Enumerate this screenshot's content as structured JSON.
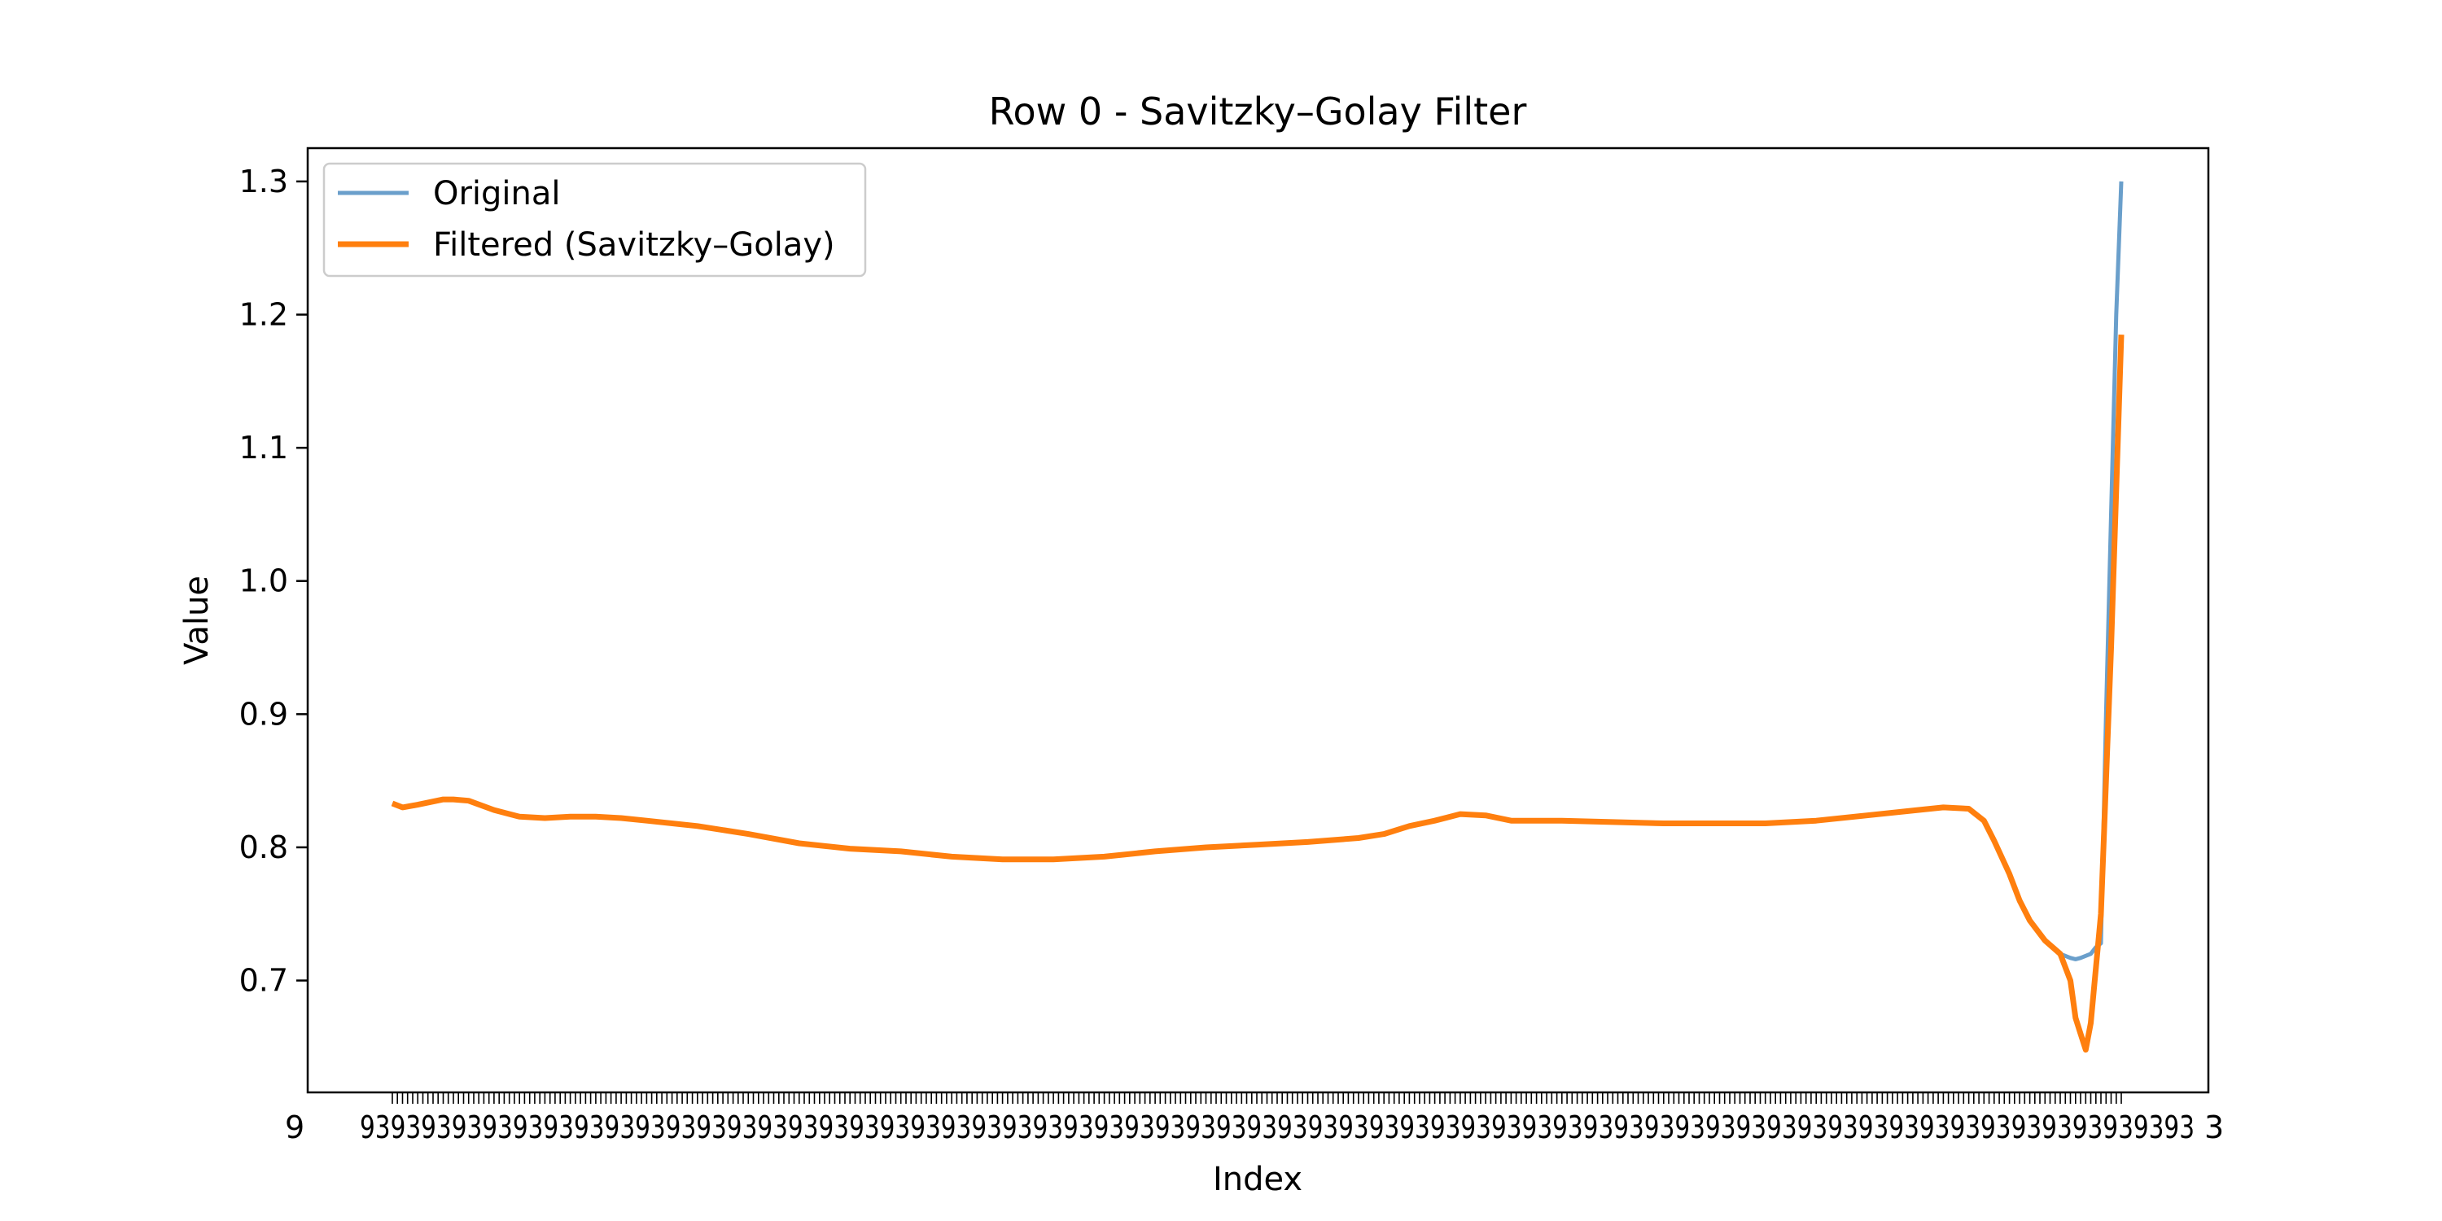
{
  "chart_data": {
    "type": "line",
    "title": "Row 0 - Savitzky–Golay Filter",
    "xlabel": "Index",
    "ylabel": "Value",
    "ylim": [
      0.616,
      1.325
    ],
    "yticks": [
      "0.7",
      "0.8",
      "0.9",
      "1.0",
      "1.1",
      "1.2",
      "1.3"
    ],
    "xrange": [
      0,
      340
    ],
    "xtick_label_left": "9",
    "xtick_label_right": "3",
    "grid": false,
    "legend_position": "top-left",
    "series": [
      {
        "name": "Original",
        "color": "#6a9fcb",
        "x": [
          0,
          2,
          5,
          10,
          12,
          15,
          20,
          25,
          30,
          35,
          40,
          45,
          50,
          60,
          70,
          80,
          90,
          100,
          110,
          120,
          130,
          140,
          150,
          160,
          170,
          180,
          190,
          195,
          200,
          205,
          210,
          215,
          220,
          230,
          240,
          250,
          260,
          270,
          280,
          290,
          300,
          305,
          310,
          313,
          315,
          318,
          320,
          322,
          325,
          328,
          330,
          331,
          332,
          334,
          335,
          336,
          337,
          338,
          339,
          340
        ],
        "y": [
          0.833,
          0.83,
          0.832,
          0.836,
          0.836,
          0.835,
          0.828,
          0.823,
          0.822,
          0.823,
          0.823,
          0.822,
          0.82,
          0.816,
          0.81,
          0.803,
          0.799,
          0.797,
          0.793,
          0.791,
          0.791,
          0.793,
          0.797,
          0.8,
          0.802,
          0.804,
          0.807,
          0.81,
          0.816,
          0.82,
          0.825,
          0.824,
          0.82,
          0.82,
          0.819,
          0.818,
          0.818,
          0.818,
          0.82,
          0.824,
          0.828,
          0.83,
          0.829,
          0.82,
          0.805,
          0.78,
          0.76,
          0.745,
          0.73,
          0.72,
          0.717,
          0.716,
          0.717,
          0.72,
          0.725,
          0.728,
          0.9,
          1.05,
          1.2,
          1.3
        ]
      },
      {
        "name": "Filtered (Savitzky–Golay)",
        "color": "#ff7f0e",
        "x": [
          0,
          2,
          5,
          10,
          12,
          15,
          20,
          25,
          30,
          35,
          40,
          45,
          50,
          60,
          70,
          80,
          90,
          100,
          110,
          120,
          130,
          140,
          150,
          160,
          170,
          180,
          190,
          195,
          200,
          205,
          210,
          215,
          220,
          230,
          240,
          250,
          260,
          270,
          280,
          290,
          300,
          305,
          310,
          313,
          315,
          318,
          320,
          322,
          325,
          328,
          330,
          331,
          332,
          333,
          334,
          336,
          338,
          340
        ],
        "y": [
          0.833,
          0.83,
          0.832,
          0.836,
          0.836,
          0.835,
          0.828,
          0.823,
          0.822,
          0.823,
          0.823,
          0.822,
          0.82,
          0.816,
          0.81,
          0.803,
          0.799,
          0.797,
          0.793,
          0.791,
          0.791,
          0.793,
          0.797,
          0.8,
          0.802,
          0.804,
          0.807,
          0.81,
          0.816,
          0.82,
          0.825,
          0.824,
          0.82,
          0.82,
          0.819,
          0.818,
          0.818,
          0.818,
          0.82,
          0.824,
          0.828,
          0.83,
          0.829,
          0.82,
          0.805,
          0.78,
          0.76,
          0.745,
          0.73,
          0.72,
          0.7,
          0.672,
          0.66,
          0.648,
          0.668,
          0.75,
          0.95,
          1.185
        ]
      }
    ]
  }
}
